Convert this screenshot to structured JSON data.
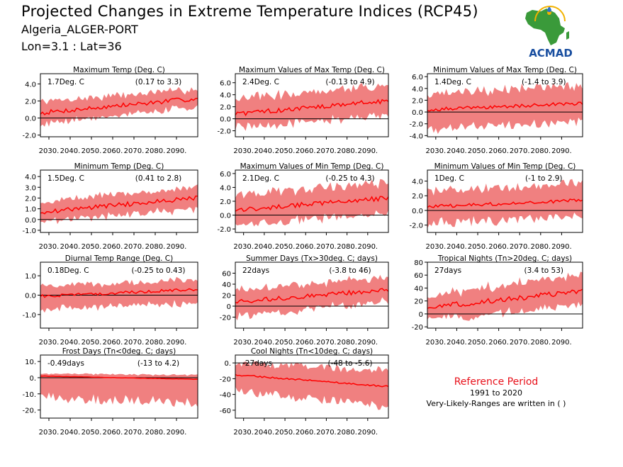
{
  "header": {
    "title": "Projected Changes in Extreme Temperature Indices (RCP45)",
    "station": "Algeria_ALGER-PORT",
    "location": "Lon=3.1 : Lat=36"
  },
  "logo": {
    "text": "ACMAD",
    "icon": "africa-map-icon"
  },
  "reference": {
    "title": "Reference Period",
    "years": "1991 to 2020",
    "note": "Very-Likely-Ranges are written in ( )"
  },
  "colors": {
    "band": "#f08080",
    "line": "#ff0000",
    "zero": "#000000",
    "logo_text": "#1a4fa0",
    "logo_map": "#3a9a3a",
    "ref_title": "#e8101a"
  },
  "chart_data": [
    {
      "type": "area",
      "title": "Maximum Temp (Deg. C)",
      "change": "1.7Deg. C",
      "range": "(0.17 to 3.3)",
      "x_ticks": [
        "2030.",
        "2040.",
        "2050.",
        "2060.",
        "2070.",
        "2080.",
        "2090."
      ],
      "y_ticks": [
        "-2.0",
        "0.0",
        "2.0",
        "4.0"
      ],
      "xlim": [
        2026,
        2100
      ],
      "ylim": [
        -2.2,
        5.2
      ],
      "start": [
        0.6,
        -0.6,
        1.9
      ],
      "end": [
        2.3,
        1.3,
        3.4
      ]
    },
    {
      "type": "area",
      "title": "Maximum Values of Max Temp (Deg. C)",
      "change": "2.4Deg. C",
      "range": "(-0.13 to 4.9)",
      "x_ticks": [
        "2030.",
        "2040.",
        "2050.",
        "2060.",
        "2070.",
        "2080.",
        "2090."
      ],
      "y_ticks": [
        "-2.0",
        "0.0",
        "2.0",
        "4.0",
        "6.0"
      ],
      "xlim": [
        2026,
        2100
      ],
      "ylim": [
        -3.0,
        7.5
      ],
      "start": [
        0.8,
        -1.5,
        3.3
      ],
      "end": [
        3.0,
        0.6,
        5.6
      ]
    },
    {
      "type": "area",
      "title": "Minimum Values of Max Temp (Deg. C)",
      "change": "1.4Deg. C",
      "range": "(-1.4 to 3.9)",
      "x_ticks": [
        "2030.",
        "2040.",
        "2050.",
        "2060.",
        "2070.",
        "2080.",
        "2090."
      ],
      "y_ticks": [
        "-4.0",
        "-2.0",
        "0.0",
        "2.0",
        "4.0",
        "6.0"
      ],
      "xlim": [
        2026,
        2100
      ],
      "ylim": [
        -4.2,
        6.5
      ],
      "start": [
        0.4,
        -2.8,
        3.0
      ],
      "end": [
        1.5,
        -1.6,
        4.6
      ]
    },
    {
      "type": "area",
      "title": "Minimum Temp (Deg. C)",
      "change": "1.5Deg. C",
      "range": "(0.41 to 2.8)",
      "x_ticks": [
        "2030.",
        "2040.",
        "2050.",
        "2060.",
        "2070.",
        "2080.",
        "2090."
      ],
      "y_ticks": [
        "-1.0",
        "0.0",
        "1.0",
        "2.0",
        "3.0",
        "4.0"
      ],
      "xlim": [
        2026,
        2100
      ],
      "ylim": [
        -1.2,
        4.6
      ],
      "start": [
        0.7,
        -0.2,
        1.7
      ],
      "end": [
        2.0,
        1.0,
        3.0
      ]
    },
    {
      "type": "area",
      "title": "Maximum Values of Min Temp (Deg. C)",
      "change": "2.1Deg. C",
      "range": "(-0.25 to 4.3)",
      "x_ticks": [
        "2030.",
        "2040.",
        "2050.",
        "2060.",
        "2070.",
        "2080.",
        "2090."
      ],
      "y_ticks": [
        "-2.0",
        "0.0",
        "2.0",
        "4.0",
        "6.0"
      ],
      "xlim": [
        2026,
        2100
      ],
      "ylim": [
        -2.5,
        6.5
      ],
      "start": [
        0.7,
        -1.5,
        3.0
      ],
      "end": [
        2.5,
        0.3,
        4.7
      ]
    },
    {
      "type": "area",
      "title": "Minimum Values of Min Temp (Deg. C)",
      "change": "1Deg. C",
      "range": "(-1 to 2.9)",
      "x_ticks": [
        "2030.",
        "2040.",
        "2050.",
        "2060.",
        "2070.",
        "2080.",
        "2090."
      ],
      "y_ticks": [
        "-2.0",
        "0.0",
        "2.0",
        "4.0"
      ],
      "xlim": [
        2026,
        2100
      ],
      "ylim": [
        -3.0,
        5.5
      ],
      "start": [
        0.5,
        -1.8,
        2.6
      ],
      "end": [
        1.4,
        -0.8,
        3.8
      ]
    },
    {
      "type": "area",
      "title": "Diurnal Temp Range (Deg. C)",
      "change": "0.18Deg. C",
      "range": "(-0.25 to 0.43)",
      "x_ticks": [
        "2030.",
        "2040.",
        "2050.",
        "2060.",
        "2070.",
        "2080.",
        "2090."
      ],
      "y_ticks": [
        "-1.0",
        "0.0",
        "1.0"
      ],
      "xlim": [
        2026,
        2100
      ],
      "ylim": [
        -1.7,
        1.7
      ],
      "start": [
        -0.05,
        -0.7,
        0.45
      ],
      "end": [
        0.3,
        -0.4,
        0.8
      ]
    },
    {
      "type": "area",
      "title": "Summer Days (Tx>30deg. C; days)",
      "change": "22days",
      "range": "(-3.8 to 46)",
      "x_ticks": [
        "2030.",
        "2040.",
        "2050.",
        "2060.",
        "2070.",
        "2080.",
        "2090."
      ],
      "y_ticks": [
        "-20",
        "0",
        "20",
        "40",
        "60"
      ],
      "xlim": [
        2026,
        2100
      ],
      "ylim": [
        -40,
        80
      ],
      "start": [
        8,
        -18,
        30
      ],
      "end": [
        30,
        10,
        52
      ]
    },
    {
      "type": "area",
      "title": "Tropical Nights (Tn>20deg. C; days)",
      "change": "27days",
      "range": "(3.4 to 53)",
      "x_ticks": [
        "2030.",
        "2040.",
        "2050.",
        "2060.",
        "2070.",
        "2080.",
        "2090."
      ],
      "y_ticks": [
        "-20",
        "0",
        "20",
        "40",
        "60",
        "80"
      ],
      "xlim": [
        2026,
        2100
      ],
      "ylim": [
        -22,
        80
      ],
      "start": [
        10,
        -8,
        28
      ],
      "end": [
        35,
        12,
        62
      ]
    },
    {
      "type": "area",
      "title": "Frost Days (Tn<0deg. C; days)",
      "change": "-0.49days",
      "range": "(-13 to 4.2)",
      "x_ticks": [
        "2030.",
        "2040.",
        "2050.",
        "2060.",
        "2070.",
        "2080.",
        "2090."
      ],
      "y_ticks": [
        "-20.",
        "-10.",
        "0.",
        "10."
      ],
      "xlim": [
        2026,
        2100
      ],
      "ylim": [
        -25,
        14
      ],
      "start": [
        1,
        -12,
        2.5
      ],
      "end": [
        -1,
        -15,
        1.5
      ]
    },
    {
      "type": "area",
      "title": "Cool Nights (Tn<10deg. C; days)",
      "change": "-27days",
      "range": "(-48 to -5.6)",
      "x_ticks": [
        "2030.",
        "2040.",
        "2050.",
        "2060.",
        "2070.",
        "2080.",
        "2090."
      ],
      "y_ticks": [
        "-60",
        "-40",
        "-20",
        "0."
      ],
      "xlim": [
        2026,
        2100
      ],
      "ylim": [
        -70,
        10
      ],
      "start": [
        -15,
        -35,
        0
      ],
      "end": [
        -30,
        -55,
        -10
      ]
    }
  ]
}
